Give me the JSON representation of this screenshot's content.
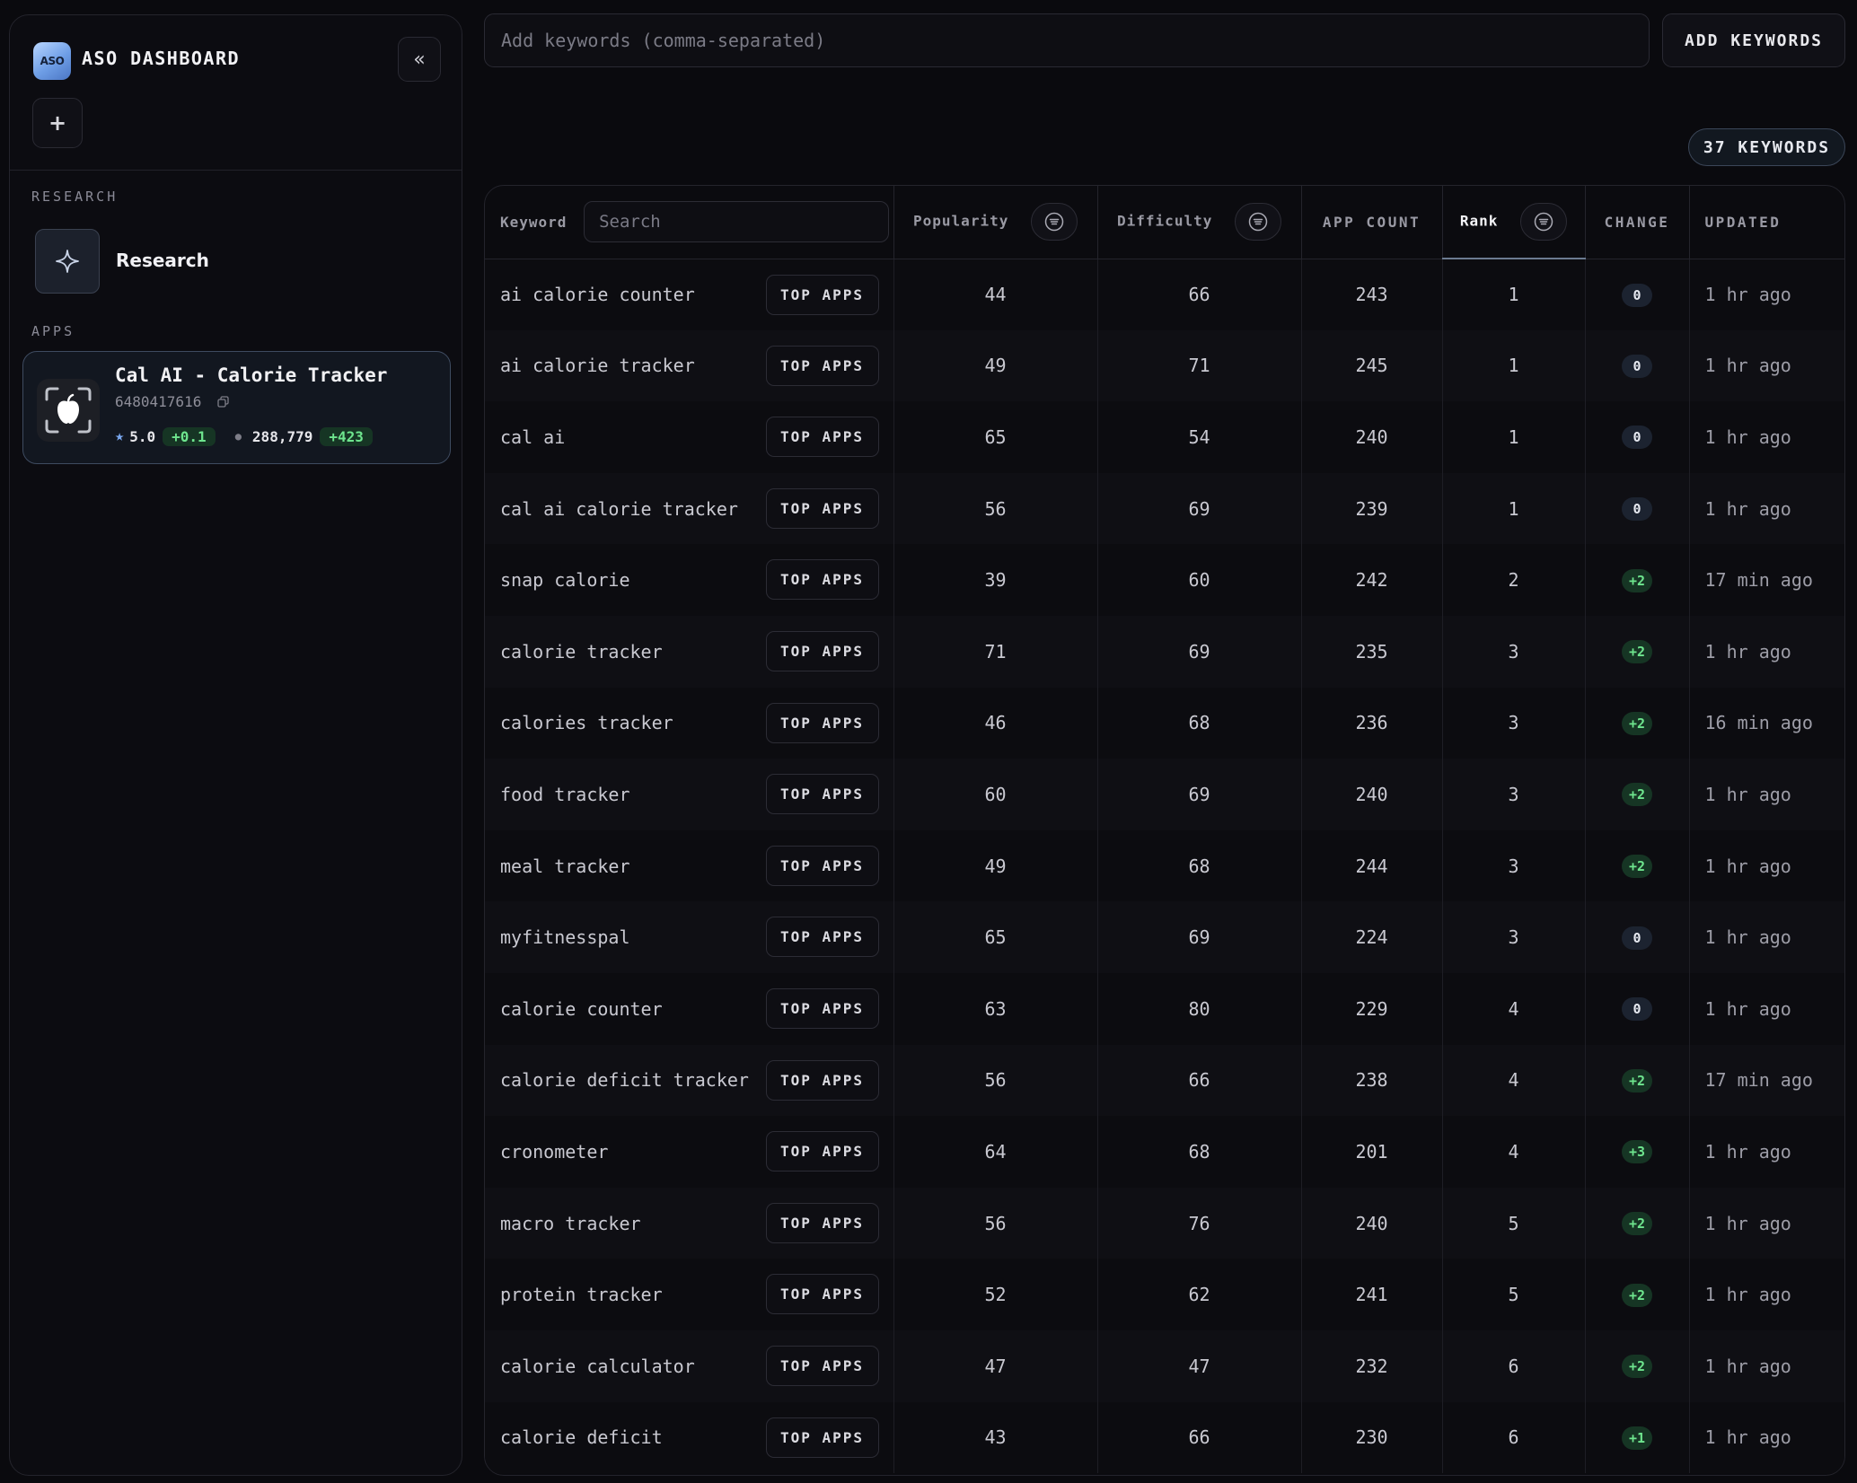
{
  "sidebar": {
    "logo_text": "ASO",
    "title": "ASO DASHBOARD",
    "collapse_icon": "«",
    "add_icon": "+",
    "research_section": "RESEARCH",
    "research_label": "Research",
    "apps_section": "APPS",
    "app": {
      "name": "Cal AI - Calorie Tracker",
      "id": "6480417616",
      "rating": "5.0",
      "rating_change": "+0.1",
      "reviews": "288,779",
      "reviews_change": "+423"
    }
  },
  "toolbar": {
    "keywords_placeholder": "Add keywords (comma-separated)",
    "add_keywords_label": "ADD KEYWORDS",
    "keyword_count": "37 KEYWORDS"
  },
  "table": {
    "headers": {
      "keyword": "Keyword",
      "search_placeholder": "Search",
      "popularity": "Popularity",
      "difficulty": "Difficulty",
      "app_count": "APP COUNT",
      "rank": "Rank",
      "change": "CHANGE",
      "updated": "UPDATED"
    },
    "top_apps_label": "TOP APPS",
    "rows": [
      {
        "keyword": "ai calorie counter",
        "popularity": "44",
        "difficulty": "66",
        "app_count": "243",
        "rank": "1",
        "change": "0",
        "updated": "1 hr ago"
      },
      {
        "keyword": "ai calorie tracker",
        "popularity": "49",
        "difficulty": "71",
        "app_count": "245",
        "rank": "1",
        "change": "0",
        "updated": "1 hr ago"
      },
      {
        "keyword": "cal ai",
        "popularity": "65",
        "difficulty": "54",
        "app_count": "240",
        "rank": "1",
        "change": "0",
        "updated": "1 hr ago"
      },
      {
        "keyword": "cal ai calorie tracker",
        "popularity": "56",
        "difficulty": "69",
        "app_count": "239",
        "rank": "1",
        "change": "0",
        "updated": "1 hr ago"
      },
      {
        "keyword": "snap calorie",
        "popularity": "39",
        "difficulty": "60",
        "app_count": "242",
        "rank": "2",
        "change": "+2",
        "updated": "17 min ago"
      },
      {
        "keyword": "calorie tracker",
        "popularity": "71",
        "difficulty": "69",
        "app_count": "235",
        "rank": "3",
        "change": "+2",
        "updated": "1 hr ago"
      },
      {
        "keyword": "calories tracker",
        "popularity": "46",
        "difficulty": "68",
        "app_count": "236",
        "rank": "3",
        "change": "+2",
        "updated": "16 min ago"
      },
      {
        "keyword": "food tracker",
        "popularity": "60",
        "difficulty": "69",
        "app_count": "240",
        "rank": "3",
        "change": "+2",
        "updated": "1 hr ago"
      },
      {
        "keyword": "meal tracker",
        "popularity": "49",
        "difficulty": "68",
        "app_count": "244",
        "rank": "3",
        "change": "+2",
        "updated": "1 hr ago"
      },
      {
        "keyword": "myfitnesspal",
        "popularity": "65",
        "difficulty": "69",
        "app_count": "224",
        "rank": "3",
        "change": "0",
        "updated": "1 hr ago"
      },
      {
        "keyword": "calorie counter",
        "popularity": "63",
        "difficulty": "80",
        "app_count": "229",
        "rank": "4",
        "change": "0",
        "updated": "1 hr ago"
      },
      {
        "keyword": "calorie deficit tracker",
        "popularity": "56",
        "difficulty": "66",
        "app_count": "238",
        "rank": "4",
        "change": "+2",
        "updated": "17 min ago"
      },
      {
        "keyword": "cronometer",
        "popularity": "64",
        "difficulty": "68",
        "app_count": "201",
        "rank": "4",
        "change": "+3",
        "updated": "1 hr ago"
      },
      {
        "keyword": "macro tracker",
        "popularity": "56",
        "difficulty": "76",
        "app_count": "240",
        "rank": "5",
        "change": "+2",
        "updated": "1 hr ago"
      },
      {
        "keyword": "protein tracker",
        "popularity": "52",
        "difficulty": "62",
        "app_count": "241",
        "rank": "5",
        "change": "+2",
        "updated": "1 hr ago"
      },
      {
        "keyword": "calorie calculator",
        "popularity": "47",
        "difficulty": "47",
        "app_count": "232",
        "rank": "6",
        "change": "+2",
        "updated": "1 hr ago"
      },
      {
        "keyword": "calorie deficit",
        "popularity": "43",
        "difficulty": "66",
        "app_count": "230",
        "rank": "6",
        "change": "+1",
        "updated": "1 hr ago"
      }
    ]
  },
  "colors": {
    "background": "#0a0a0e",
    "accent_blue": "#7aa8f0",
    "positive_green": "#6ee58e"
  },
  "icons": {
    "collapse": "chevrons-left-icon",
    "add": "plus-icon",
    "research": "sparkle-icon",
    "app": "apple-scan-icon",
    "copy": "copy-icon",
    "rating": "star-icon",
    "sort_filter": "filter-lines-icon"
  }
}
